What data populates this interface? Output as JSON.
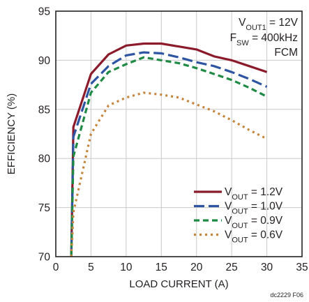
{
  "chart_data": {
    "type": "line",
    "xlabel": "LOAD CURRENT (A)",
    "ylabel": "EFFICIENCY (%)",
    "xlim": [
      0,
      35
    ],
    "ylim": [
      70,
      95
    ],
    "xticks": [
      0,
      5,
      10,
      15,
      20,
      25,
      30,
      35
    ],
    "yticks": [
      70,
      75,
      80,
      85,
      90,
      95
    ],
    "grid": true,
    "legend_position": "bottom-right",
    "annotations": [
      {
        "id": "vout1",
        "main": "V",
        "sub": "OUT1",
        "rest": " = 12V"
      },
      {
        "id": "fsw",
        "main": "F",
        "sub": "SW",
        "rest": " = 400kHz"
      },
      {
        "id": "mode",
        "main": "FCM",
        "sub": "",
        "rest": ""
      }
    ],
    "figure_id": "dc2229 F06",
    "series": [
      {
        "legend_main": "V",
        "legend_sub": "OUT",
        "legend_rest": " = 1.2V",
        "color": "#8b1a2b",
        "dash": "",
        "x": [
          2.2,
          2.5,
          5,
          7.5,
          10,
          12.5,
          15,
          17.5,
          20,
          22.5,
          25,
          27.5,
          30
        ],
        "y": [
          70,
          83.2,
          88.6,
          90.6,
          91.5,
          91.7,
          91.7,
          91.4,
          91.1,
          90.4,
          90.0,
          89.4,
          88.8
        ]
      },
      {
        "legend_main": "V",
        "legend_sub": "OUT",
        "legend_rest": " = 1.0V",
        "color": "#2d55a2",
        "dash": "15,6",
        "x": [
          2.2,
          2.5,
          5,
          7.5,
          10,
          12.5,
          15,
          17.5,
          20,
          22.5,
          25,
          27.5,
          30
        ],
        "y": [
          70,
          82.2,
          87.6,
          89.4,
          90.5,
          90.8,
          90.7,
          90.3,
          89.8,
          89.4,
          88.8,
          88.1,
          87.3
        ]
      },
      {
        "legend_main": "V",
        "legend_sub": "OUT",
        "legend_rest": " = 0.9V",
        "color": "#1f8a43",
        "dash": "8,5",
        "x": [
          2.2,
          2.5,
          5,
          7.5,
          10,
          12.5,
          15,
          17.5,
          20,
          22.5,
          25,
          27.5,
          30
        ],
        "y": [
          70,
          80.2,
          86.7,
          88.8,
          89.6,
          90.3,
          90.0,
          89.7,
          89.2,
          88.6,
          88.0,
          87.2,
          86.3
        ]
      },
      {
        "legend_main": "V",
        "legend_sub": "OUT",
        "legend_rest": " = 0.6V",
        "color": "#c6843a",
        "dash": "3,5",
        "x": [
          2.2,
          2.5,
          5,
          7.5,
          10,
          12.5,
          15,
          17.5,
          20,
          22.5,
          25,
          27.5,
          30
        ],
        "y": [
          70,
          74.5,
          82.5,
          85.4,
          86.2,
          86.7,
          86.5,
          86.2,
          85.5,
          84.8,
          83.9,
          82.9,
          82.0
        ]
      }
    ]
  }
}
